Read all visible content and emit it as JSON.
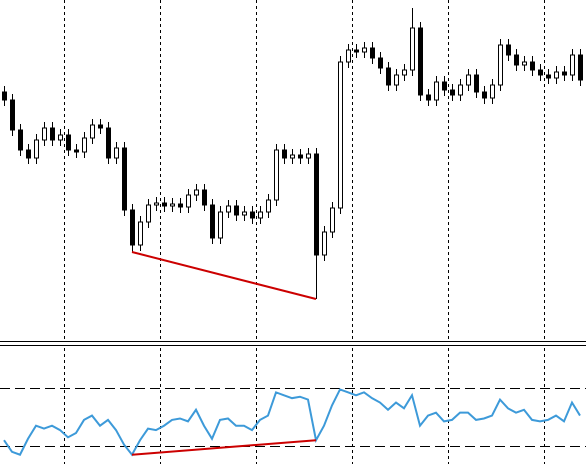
{
  "chart_data": [
    {
      "type": "candlestick",
      "open": [
        248,
        240,
        210,
        190,
        182,
        200,
        212,
        200,
        205,
        190,
        188,
        202,
        215,
        212,
        182,
        192,
        130,
        95,
        118,
        135,
        137,
        134,
        136,
        133,
        145,
        150,
        135,
        102,
        128,
        134,
        125,
        128,
        122,
        128,
        140,
        190,
        182,
        185,
        182,
        186,
        85,
        108,
        132,
        278,
        290,
        288,
        292,
        282,
        272,
        255,
        265,
        270,
        312,
        245,
        240,
        258,
        250,
        245,
        255,
        265,
        248,
        242,
        255,
        295,
        285,
        275,
        278,
        270,
        265,
        262,
        268,
        265,
        285
      ],
      "high": [
        254,
        246,
        216,
        196,
        206,
        218,
        218,
        211,
        211,
        196,
        208,
        221,
        221,
        218,
        198,
        198,
        136,
        124,
        141,
        143,
        143,
        142,
        142,
        151,
        156,
        156,
        141,
        134,
        140,
        140,
        134,
        134,
        134,
        146,
        196,
        196,
        191,
        191,
        192,
        192,
        114,
        138,
        284,
        296,
        296,
        298,
        298,
        288,
        278,
        271,
        276,
        332,
        318,
        251,
        264,
        264,
        256,
        261,
        271,
        271,
        254,
        261,
        301,
        301,
        291,
        284,
        284,
        276,
        271,
        274,
        274,
        291,
        291
      ],
      "low": [
        234,
        204,
        184,
        176,
        176,
        194,
        194,
        194,
        184,
        182,
        182,
        196,
        206,
        176,
        176,
        124,
        88,
        89,
        112,
        129,
        128,
        128,
        127,
        127,
        139,
        129,
        96,
        96,
        122,
        119,
        119,
        116,
        116,
        122,
        134,
        176,
        176,
        176,
        176,
        41,
        79,
        102,
        126,
        272,
        282,
        282,
        276,
        266,
        249,
        249,
        259,
        264,
        239,
        234,
        234,
        244,
        239,
        239,
        249,
        242,
        236,
        236,
        249,
        279,
        269,
        269,
        264,
        259,
        256,
        256,
        259,
        259,
        254
      ],
      "close": [
        240,
        210,
        190,
        182,
        200,
        212,
        200,
        205,
        190,
        188,
        202,
        215,
        212,
        182,
        192,
        130,
        95,
        118,
        135,
        137,
        134,
        136,
        133,
        145,
        150,
        135,
        102,
        128,
        134,
        125,
        128,
        122,
        128,
        140,
        190,
        182,
        185,
        182,
        186,
        85,
        108,
        132,
        278,
        290,
        288,
        292,
        282,
        272,
        255,
        265,
        270,
        312,
        245,
        240,
        258,
        250,
        245,
        255,
        265,
        248,
        242,
        255,
        295,
        285,
        275,
        278,
        270,
        265,
        262,
        268,
        265,
        285,
        260
      ],
      "ylim": [
        0,
        340
      ],
      "color": "#000000",
      "trendline": {
        "color": "#cc0000",
        "from": {
          "index": 16,
          "value": 88
        },
        "to": {
          "index": 39,
          "value": 41
        }
      }
    },
    {
      "type": "line",
      "values": [
        34,
        26,
        24,
        35,
        44,
        42,
        44,
        41,
        36,
        39,
        48,
        51,
        44,
        48,
        41,
        31,
        24,
        34,
        42,
        41,
        44,
        48,
        49,
        47,
        55,
        44,
        35,
        48,
        49,
        44,
        44,
        41,
        48,
        51,
        67,
        65,
        63,
        64,
        62,
        34,
        44,
        58,
        69,
        67,
        65,
        67,
        63,
        60,
        55,
        60,
        56,
        65,
        44,
        51,
        53,
        47,
        48,
        53,
        53,
        48,
        49,
        51,
        62,
        56,
        53,
        55,
        48,
        47,
        48,
        51,
        47,
        60,
        51
      ],
      "color": "#3d9ad9",
      "ylim": [
        17.6,
        97.6
      ],
      "levels": [
        70,
        30
      ],
      "trendline": {
        "color": "#cc0000",
        "from": {
          "index": 16,
          "value": 24
        },
        "to": {
          "index": 39,
          "value": 34
        }
      }
    }
  ]
}
